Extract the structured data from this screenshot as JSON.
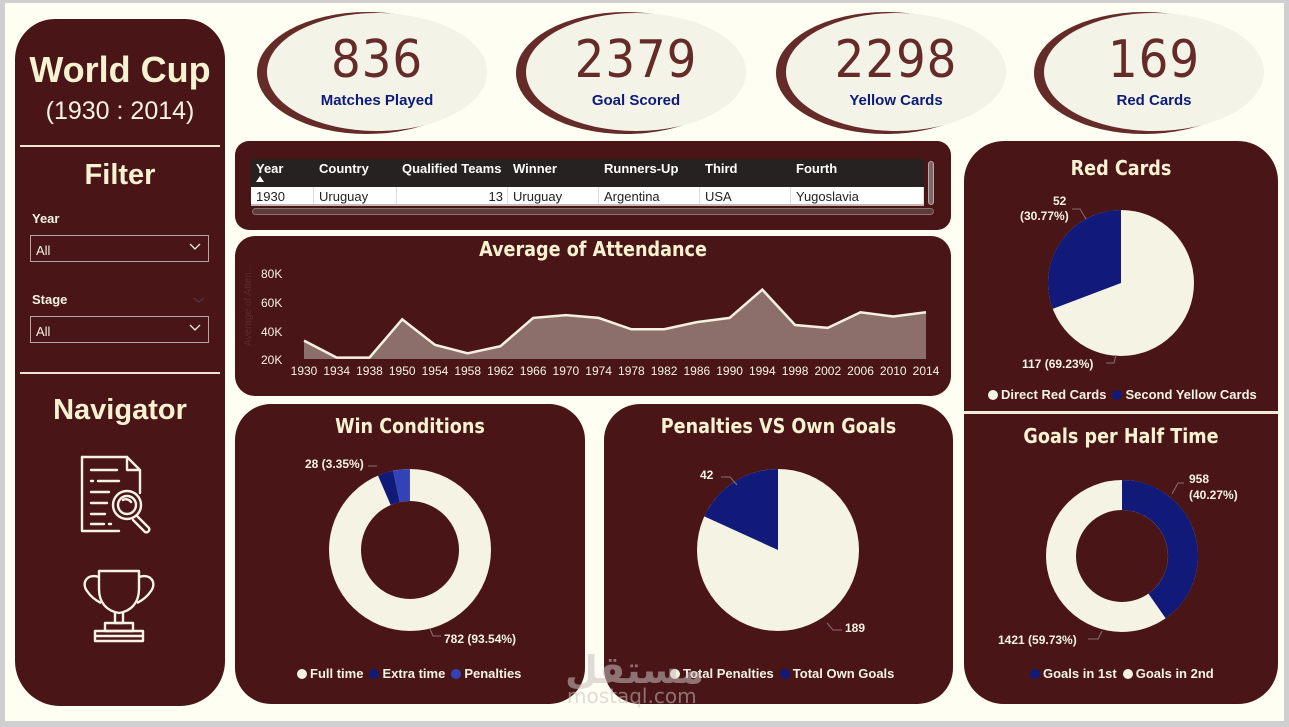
{
  "sidebar": {
    "title": "World Cup",
    "subtitle": "(1930 : 2014)",
    "filter_heading": "Filter",
    "filters": [
      {
        "label": "Year",
        "value": "All"
      },
      {
        "label": "Stage",
        "value": "All"
      }
    ],
    "navigator_heading": "Navigator",
    "nav_items": [
      {
        "icon": "document-search-icon"
      },
      {
        "icon": "trophy-icon"
      }
    ]
  },
  "kpis": [
    {
      "value": "836",
      "label": "Matches Played"
    },
    {
      "value": "2379",
      "label": "Goal Scored"
    },
    {
      "value": "2298",
      "label": "Yellow Cards"
    },
    {
      "value": "169",
      "label": "Red Cards"
    }
  ],
  "table": {
    "columns": [
      "Year",
      "Country",
      "Qualified Teams",
      "Winner",
      "Runners-Up",
      "Third",
      "Fourth"
    ],
    "sorted_column": "Year",
    "rows": [
      [
        "1930",
        "Uruguay",
        "13",
        "Uruguay",
        "Argentina",
        "USA",
        "Yugoslavia"
      ]
    ]
  },
  "chart_data": [
    {
      "type": "area",
      "title": "Average of Attendance",
      "xlabel": "",
      "ylabel": "Average of Atten...",
      "x": [
        "1930",
        "1934",
        "1938",
        "1950",
        "1954",
        "1958",
        "1962",
        "1966",
        "1970",
        "1974",
        "1978",
        "1982",
        "1986",
        "1990",
        "1994",
        "1998",
        "2002",
        "2006",
        "2010",
        "2014"
      ],
      "values": [
        33000,
        21000,
        21000,
        48000,
        30000,
        24000,
        29000,
        49000,
        51000,
        49000,
        41000,
        41000,
        46000,
        49000,
        69000,
        44000,
        42000,
        53000,
        50000,
        53000
      ],
      "yticks": [
        "20K",
        "40K",
        "60K",
        "80K"
      ],
      "ylim": [
        20000,
        80000
      ],
      "grid": false
    },
    {
      "type": "pie",
      "title": "Red Cards",
      "categories": [
        "Direct Red Cards",
        "Second Yellow Cards"
      ],
      "values": [
        117,
        52
      ],
      "labels": [
        "117 (69.23%)",
        "52 (30.77%)"
      ],
      "colors": [
        "#f5f3e4",
        "#111a78"
      ],
      "legend_position": "bottom"
    },
    {
      "type": "donut",
      "title": "Win Conditions",
      "categories": [
        "Full time",
        "Extra time",
        "Penalties"
      ],
      "values": [
        782,
        26,
        28
      ],
      "labels": [
        "782 (93.54%)",
        "",
        "28 (3.35%)"
      ],
      "colors": [
        "#f5f3e4",
        "#111a78",
        "#3442b8"
      ],
      "legend_position": "bottom"
    },
    {
      "type": "pie",
      "title": "Penalties VS Own Goals",
      "categories": [
        "Total Penalties",
        "Total Own Goals"
      ],
      "values": [
        189,
        42
      ],
      "labels": [
        "189",
        "42"
      ],
      "colors": [
        "#f5f3e4",
        "#111a78"
      ],
      "legend_position": "bottom"
    },
    {
      "type": "donut",
      "title": "Goals per Half Time",
      "categories": [
        "Goals in 1st",
        "Goals in 2nd"
      ],
      "values": [
        958,
        1421
      ],
      "labels": [
        "958 (40.27%)",
        "1421 (59.73%)"
      ],
      "colors": [
        "#111a78",
        "#f5f3e4"
      ],
      "legend_position": "bottom"
    }
  ],
  "charts": {
    "attendance": {
      "title": "Average of Attendance",
      "yticks": [
        "80K",
        "60K",
        "40K",
        "20K"
      ],
      "ytitle": "Average of Atten..."
    },
    "red_cards": {
      "title": "Red Cards",
      "label_a_1": "52",
      "label_a_2": "(30.77%)",
      "label_b": "117 (69.23%)",
      "legend": [
        "Direct Red Cards",
        "Second Yellow Cards"
      ]
    },
    "win_conditions": {
      "title": "Win Conditions",
      "label_a": "28 (3.35%)",
      "label_b": "782 (93.54%)",
      "legend": [
        "Full time",
        "Extra time",
        "Penalties"
      ]
    },
    "pen_own": {
      "title": "Penalties VS Own Goals",
      "label_a": "42",
      "label_b": "189",
      "legend": [
        "Total Penalties",
        "Total Own Goals"
      ]
    },
    "goals_half": {
      "title": "Goals per Half Time",
      "label_a_1": "958",
      "label_a_2": "(40.27%)",
      "label_b": "1421 (59.73%)",
      "legend": [
        "Goals in 1st",
        "Goals in 2nd"
      ]
    }
  },
  "watermark": {
    "line1": "مستقل",
    "line2": "mostaql.com"
  },
  "colors": {
    "panel": "#4a1517",
    "background": "#fefef2",
    "cream": "#f5f3e4",
    "navy": "#111a78",
    "kpi_number": "#652b29",
    "kpi_label": "#0e1b78",
    "area_fill": "#8c6f6a"
  }
}
